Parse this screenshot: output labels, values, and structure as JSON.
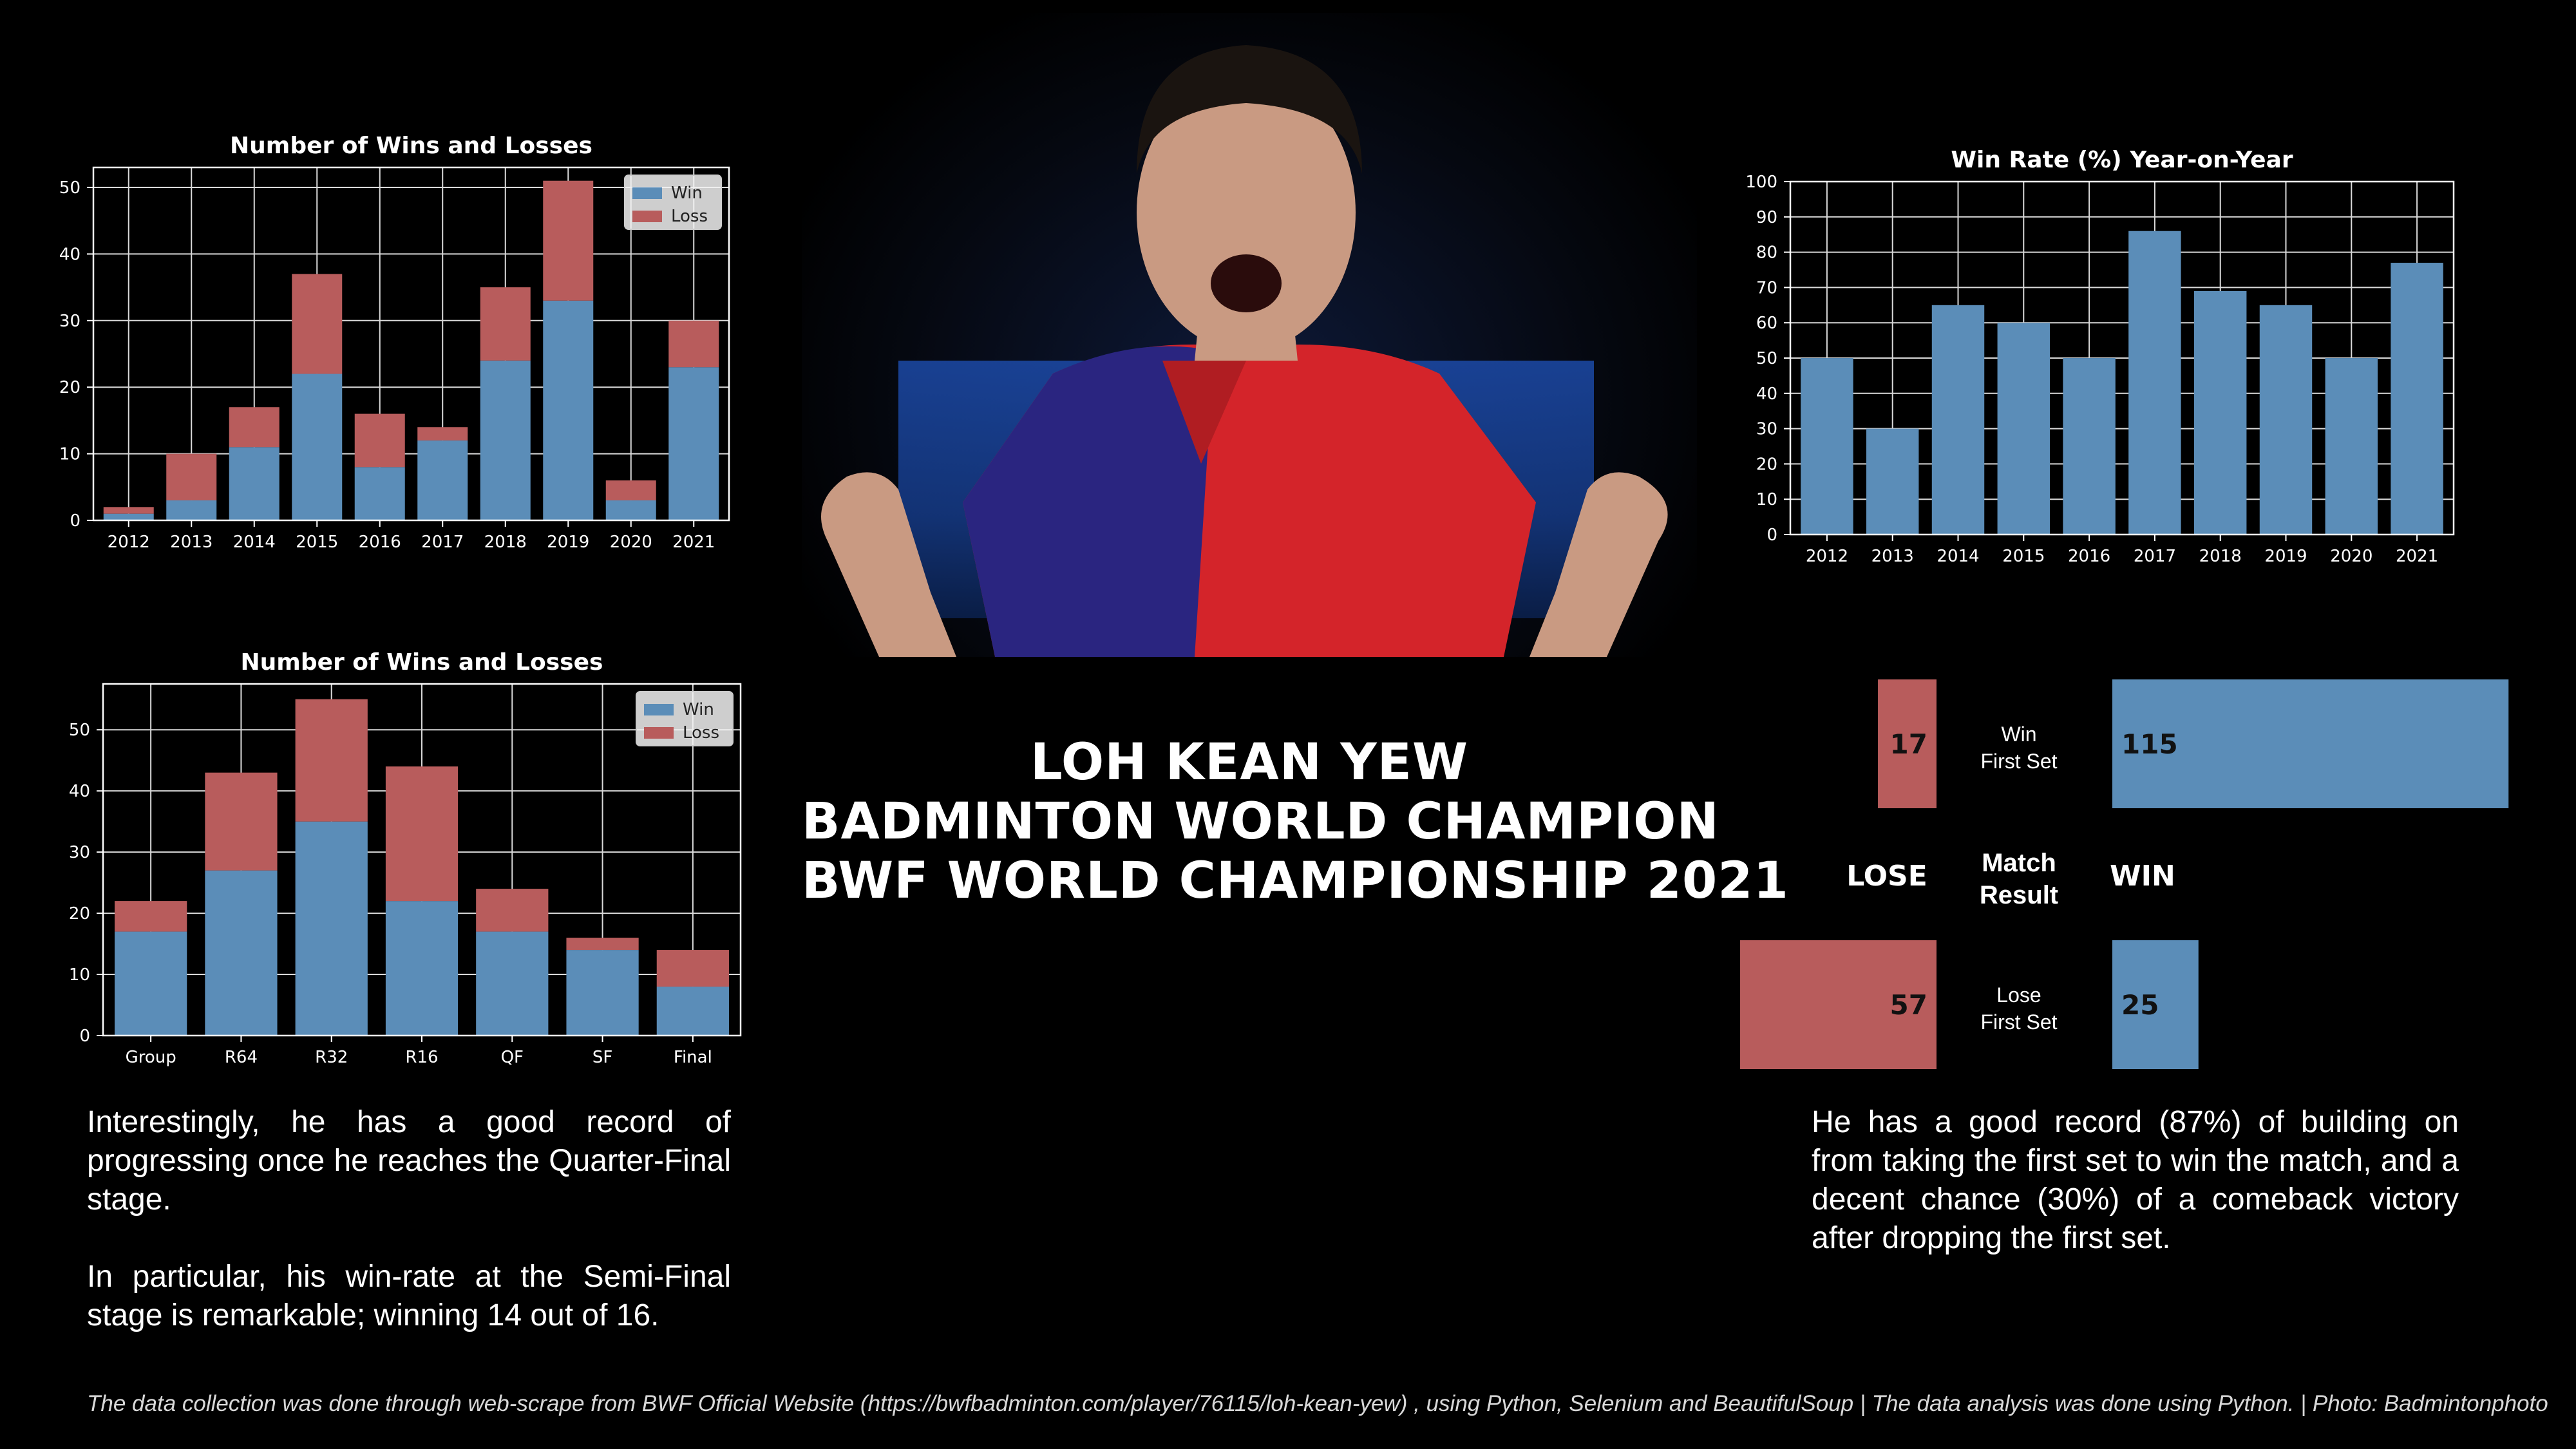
{
  "title": {
    "line1": "LOH KEAN YEW",
    "line2": "BADMINTON WORLD CHAMPION",
    "line3": "BWF WORLD CHAMPIONSHIP 2021"
  },
  "photo": {
    "alt": ""
  },
  "colors": {
    "win": "#5b8db8",
    "loss": "#b85c5c",
    "background": "#000000"
  },
  "chart_data": [
    {
      "type": "bar",
      "title": "Number of Wins and Losses",
      "xlabel": "",
      "ylabel": "",
      "categories": [
        "2012",
        "2013",
        "2014",
        "2015",
        "2016",
        "2017",
        "2018",
        "2019",
        "2020",
        "2021"
      ],
      "series": [
        {
          "name": "Win",
          "values": [
            1,
            3,
            11,
            22,
            8,
            12,
            24,
            33,
            3,
            23
          ]
        },
        {
          "name": "Loss",
          "values": [
            1,
            7,
            6,
            15,
            8,
            2,
            11,
            18,
            3,
            7
          ]
        }
      ],
      "stacked": true,
      "ylim": [
        0,
        53
      ],
      "yticks": [
        0,
        10,
        20,
        30,
        40,
        50
      ],
      "grid": true,
      "legend": "top-right"
    },
    {
      "type": "bar",
      "title": "Number of Wins and Losses",
      "xlabel": "",
      "ylabel": "",
      "categories": [
        "Group",
        "R64",
        "R32",
        "R16",
        "QF",
        "SF",
        "Final"
      ],
      "series": [
        {
          "name": "Win",
          "values": [
            17,
            27,
            35,
            22,
            17,
            14,
            8
          ]
        },
        {
          "name": "Loss",
          "values": [
            5,
            16,
            20,
            22,
            7,
            2,
            6
          ]
        }
      ],
      "stacked": true,
      "ylim": [
        0,
        57.5
      ],
      "yticks": [
        0,
        10,
        20,
        30,
        40,
        50
      ],
      "grid": true,
      "legend": "top-right"
    },
    {
      "type": "bar",
      "title": "Win Rate (%) Year-on-Year",
      "xlabel": "",
      "ylabel": "",
      "categories": [
        "2012",
        "2013",
        "2014",
        "2015",
        "2016",
        "2017",
        "2018",
        "2019",
        "2020",
        "2021"
      ],
      "values": [
        50,
        30,
        65,
        60,
        50,
        86,
        69,
        65,
        50,
        77
      ],
      "ylim": [
        0,
        100
      ],
      "yticks": [
        0,
        10,
        20,
        30,
        40,
        50,
        60,
        70,
        80,
        90,
        100
      ],
      "grid": true
    },
    {
      "type": "bar",
      "orientation": "horizontal",
      "header": {
        "left": "LOSE",
        "center": "Match Result",
        "right": "WIN"
      },
      "rows": [
        {
          "label": "Win First Set",
          "lose": 17,
          "win": 115
        },
        {
          "label": "Lose First Set",
          "lose": 57,
          "win": 25
        }
      ]
    }
  ],
  "paragraphs": {
    "left1": "Interestingly, he has a good record of progressing once he reaches the Quarter-Final stage.",
    "left2": "In particular, his win-rate at the Semi-Final stage is remarkable; winning 14 out of 16.",
    "right1": "He has a good record (87%) of building on from taking the first set to win the match, and a decent chance (30%) of a comeback victory after dropping the first set."
  },
  "footer": "The data collection was done through web-scrape from BWF Official Website (https://bwfbadminton.com/player/76115/loh-kean-yew) , using Python, Selenium and BeautifulSoup | The data analysis was done using Python. | Photo: Badmintonphoto"
}
